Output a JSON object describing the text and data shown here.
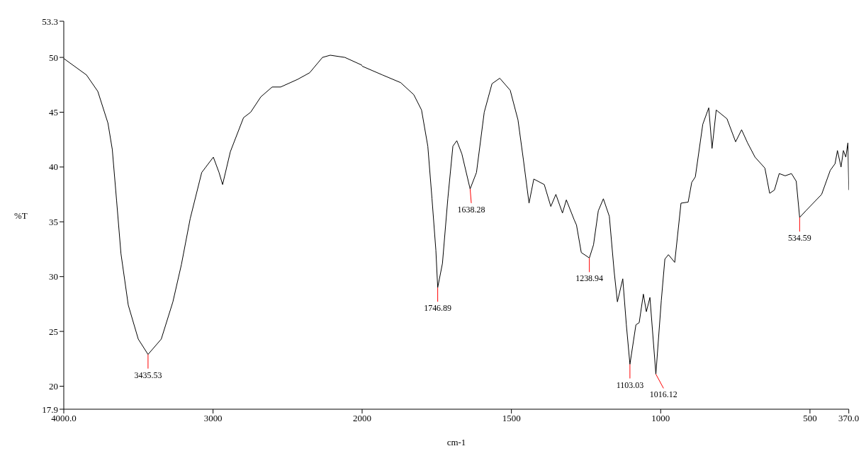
{
  "chart_data": [
    {
      "type": "line",
      "ylabel": "%T",
      "xlim": [
        4000,
        2000
      ],
      "xticks": [
        {
          "value": 4000,
          "label": "4000.0"
        },
        3000
      ],
      "ylim": [
        17.9,
        53.3
      ],
      "yticks": [
        17.9,
        20,
        25,
        30,
        35,
        40,
        45,
        50,
        53.3
      ],
      "grid": false,
      "legend": false,
      "marker": "none",
      "line_style": "solid",
      "series": [
        {
          "color": "#000000",
          "x": [
            4000,
            3848,
            3772,
            3704,
            3675,
            3646,
            3617,
            3568,
            3501,
            3435.53,
            3347,
            3269,
            3212,
            3153,
            3076,
            2998,
            2960,
            2936,
            2884,
            2796,
            2748,
            2680,
            2604,
            2547,
            2433,
            2353,
            2267,
            2215,
            2117,
            2004,
            2000
          ],
          "values": [
            49.9,
            48.4,
            46.9,
            44.0,
            41.6,
            36.9,
            32.1,
            27.4,
            24.3,
            22.9,
            24.3,
            27.7,
            31.1,
            35.3,
            39.5,
            40.9,
            39.5,
            38.4,
            41.4,
            44.5,
            45.0,
            46.4,
            47.3,
            47.3,
            48.0,
            48.6,
            50.0,
            50.2,
            50.0,
            49.3,
            49.2
          ]
        }
      ],
      "annotations": [
        {
          "text": "3435.53",
          "x": 3435.53,
          "y": 22.9
        }
      ]
    },
    {
      "type": "line",
      "xlabel": "cm-1",
      "xlim": [
        2000,
        370
      ],
      "xticks": [
        2000,
        1500,
        1000,
        500,
        {
          "value": 370,
          "label": "370.0"
        }
      ],
      "ylim": [
        17.9,
        53.3
      ],
      "tick_labels": "x",
      "grid": false,
      "legend": false,
      "marker": "none",
      "line_style": "solid",
      "series": [
        {
          "color": "#000000",
          "x": [
            2000,
            1932,
            1871,
            1827,
            1801,
            1780,
            1766,
            1753,
            1746.89,
            1731,
            1713,
            1696,
            1683,
            1666,
            1638.28,
            1617,
            1591,
            1565,
            1539,
            1504,
            1478,
            1460,
            1441,
            1425,
            1390,
            1368,
            1351,
            1329,
            1316,
            1290,
            1282,
            1266,
            1238.94,
            1225,
            1209,
            1192,
            1172,
            1156,
            1145,
            1127,
            1115,
            1103.03,
            1083,
            1072,
            1058,
            1048,
            1036,
            1016.12,
            998,
            986,
            974,
            953,
            932,
            908,
            896,
            884,
            859,
            839,
            828,
            814,
            778,
            749,
            729,
            709,
            684,
            651,
            635,
            619,
            603,
            583,
            562,
            546,
            534.59,
            514,
            461,
            432,
            416,
            408,
            396,
            388,
            380,
            373,
            370
          ],
          "values": [
            49.2,
            48.4,
            47.7,
            46.6,
            45.2,
            41.9,
            37.1,
            32.4,
            29.0,
            31.2,
            37.1,
            41.9,
            42.4,
            41.2,
            38.0,
            39.5,
            45.0,
            47.6,
            48.1,
            47.0,
            44.3,
            40.7,
            36.7,
            38.9,
            38.4,
            36.4,
            37.5,
            35.8,
            37.0,
            35.2,
            34.7,
            32.2,
            31.7,
            32.9,
            36.0,
            37.1,
            35.5,
            30.5,
            27.7,
            29.8,
            25.6,
            22.0,
            25.6,
            25.8,
            28.4,
            26.8,
            28.1,
            21.1,
            27.8,
            31.6,
            32.0,
            31.3,
            36.7,
            36.8,
            38.6,
            39.1,
            43.9,
            45.4,
            41.7,
            45.2,
            44.4,
            42.3,
            43.4,
            42.2,
            40.9,
            39.9,
            37.6,
            37.9,
            39.4,
            39.2,
            39.4,
            38.7,
            35.4,
            36.0,
            37.5,
            39.7,
            40.3,
            41.5,
            40.0,
            41.5,
            40.9,
            42.2,
            37.9
          ]
        }
      ],
      "annotations": [
        {
          "text": "1746.89",
          "x": 1746.89,
          "y": 29.0
        },
        {
          "text": "1638.28",
          "x": 1638.28,
          "y": 38.0
        },
        {
          "text": "1238.94",
          "x": 1238.94,
          "y": 31.7
        },
        {
          "text": "1103.03",
          "x": 1103.03,
          "y": 22.0
        },
        {
          "text": "1016.12",
          "x": 1016.12,
          "y": 21.1
        },
        {
          "text": "534.59",
          "x": 534.59,
          "y": 35.4
        }
      ]
    }
  ]
}
